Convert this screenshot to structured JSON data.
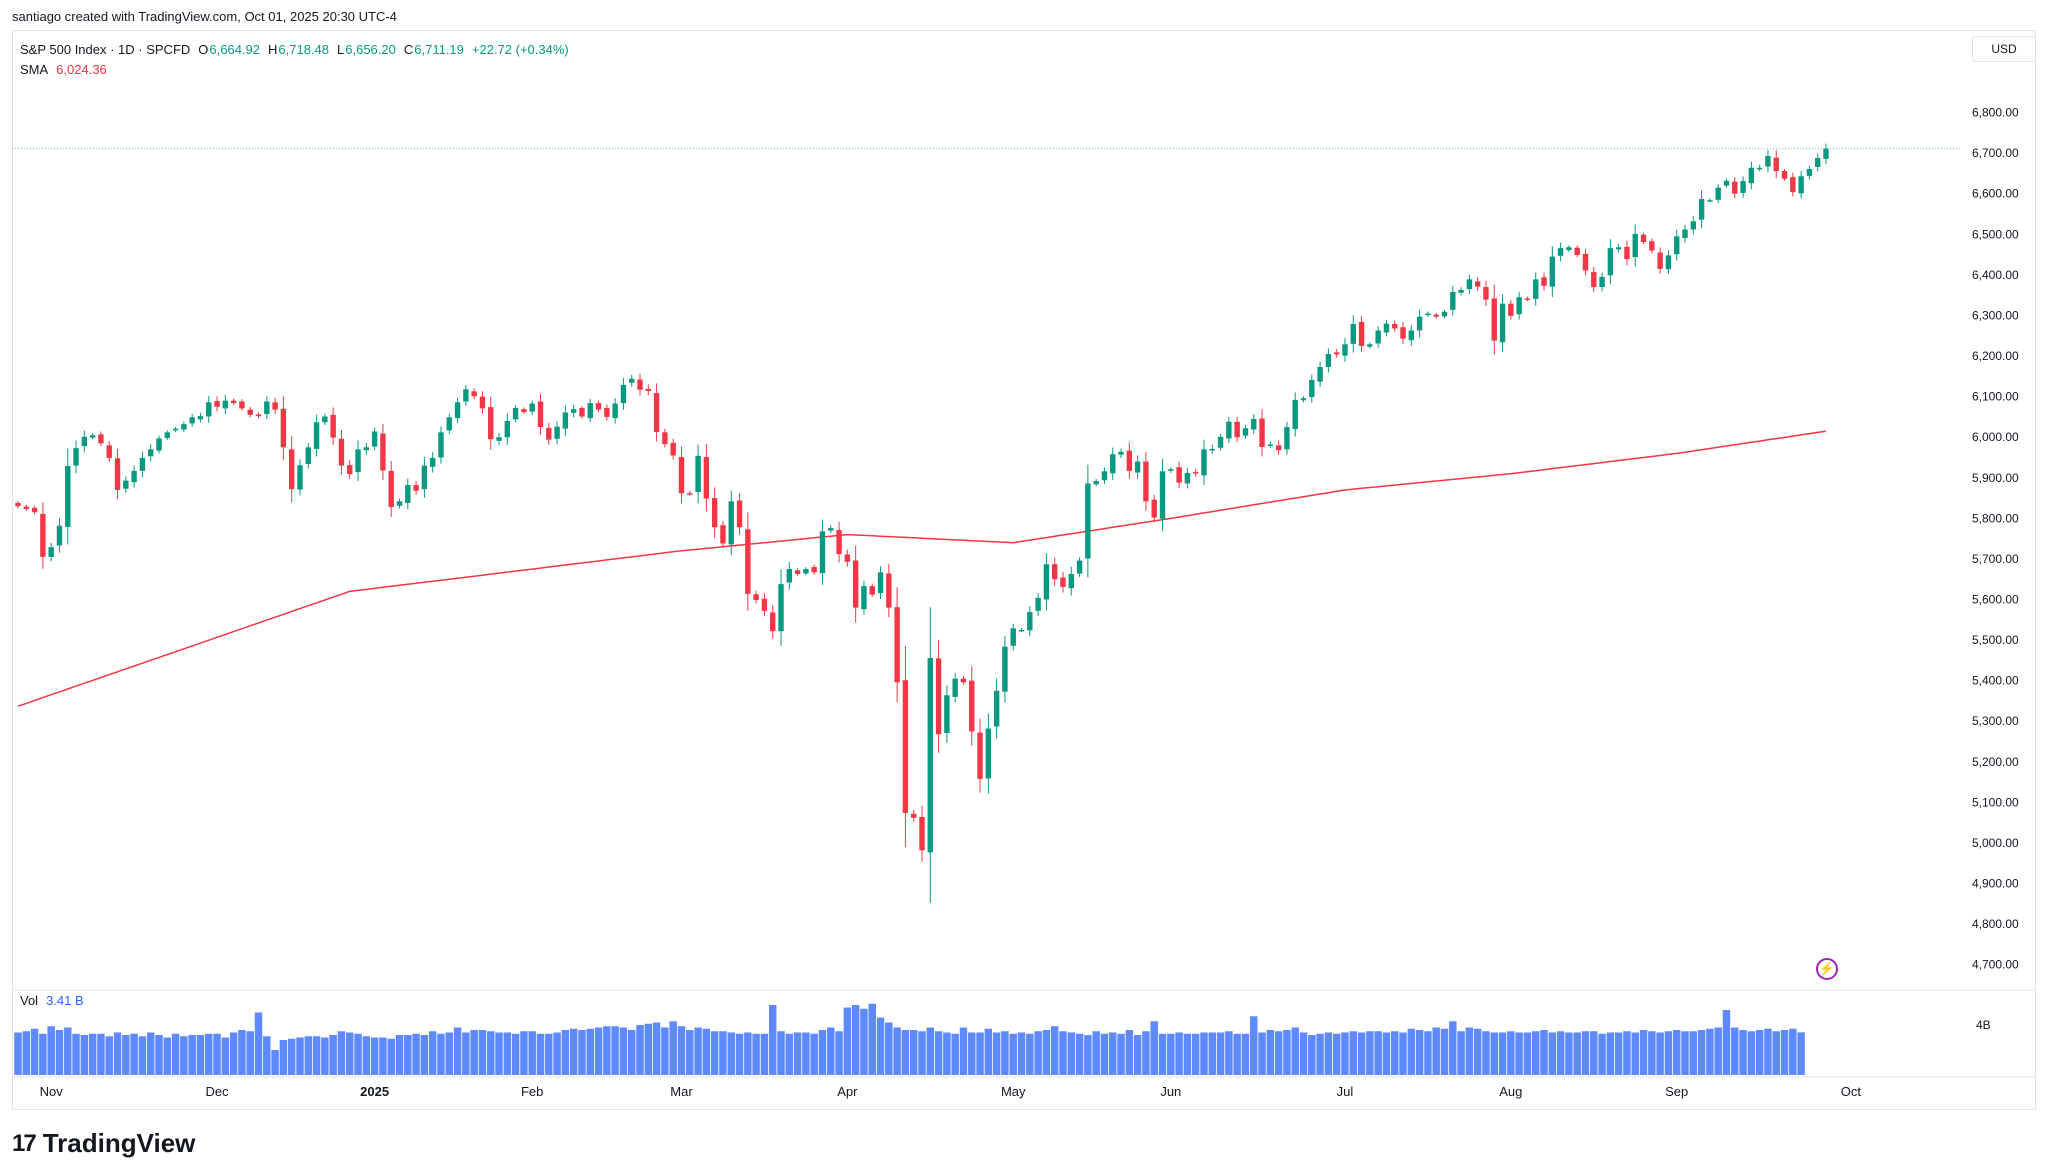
{
  "header": {
    "byline": "santiago created with TradingView.com, Oct 01, 2025 20:30 UTC-4"
  },
  "legend": {
    "symbol": "S&P 500 Index · 1D · SPCFD",
    "open_label": "O",
    "open": "6,664.92",
    "high_label": "H",
    "high": "6,718.48",
    "low_label": "L",
    "low": "6,656.20",
    "close_label": "C",
    "close": "6,711.19",
    "change": "+22.72 (+0.34%)",
    "sma_label": "SMA",
    "sma_value": "6,024.36",
    "vol_label": "Vol",
    "vol_value": "3.41 B"
  },
  "currency": "USD",
  "footer": {
    "logo_mark": "17",
    "logo_text": "TradingView"
  },
  "colors": {
    "up": "#089981",
    "down": "#f23645",
    "sma": "#f23645",
    "volume": "#2962ff",
    "last_price_line": "#089981"
  },
  "chart_data": {
    "type": "candlestick",
    "price_axis": {
      "ticks": [
        6800,
        6700,
        6600,
        6500,
        6400,
        6300,
        6200,
        6100,
        6000,
        5900,
        5800,
        5700,
        5600,
        5500,
        5400,
        5300,
        5200,
        5100,
        5000,
        4900,
        4800,
        4700
      ],
      "tick_labels": [
        "6,800.00",
        "6,700.00",
        "6,600.00",
        "6,500.00",
        "6,400.00",
        "6,300.00",
        "6,200.00",
        "6,100.00",
        "6,000.00",
        "5,900.00",
        "5,800.00",
        "5,700.00",
        "5,600.00",
        "5,500.00",
        "5,400.00",
        "5,300.00",
        "5,200.00",
        "5,100.00",
        "5,000.00",
        "4,900.00",
        "4,800.00",
        "4,700.00"
      ],
      "ylim": [
        4650,
        6900
      ]
    },
    "volume_axis": {
      "tick_label": "4B",
      "tick_value": 4.0,
      "ylim": [
        0,
        6
      ]
    },
    "time_axis": {
      "labels": [
        {
          "text": "Nov",
          "bold": false,
          "index": 4
        },
        {
          "text": "Dec",
          "bold": false,
          "index": 24
        },
        {
          "text": "2025",
          "bold": true,
          "index": 43
        },
        {
          "text": "Feb",
          "bold": false,
          "index": 62
        },
        {
          "text": "Mar",
          "bold": false,
          "index": 80
        },
        {
          "text": "Apr",
          "bold": false,
          "index": 100
        },
        {
          "text": "May",
          "bold": false,
          "index": 120
        },
        {
          "text": "Jun",
          "bold": false,
          "index": 139
        },
        {
          "text": "Jul",
          "bold": false,
          "index": 160
        },
        {
          "text": "Aug",
          "bold": false,
          "index": 180
        },
        {
          "text": "Sep",
          "bold": false,
          "index": 200
        },
        {
          "text": "Oct",
          "bold": false,
          "index": 221
        }
      ]
    },
    "closes": [
      5830,
      5823,
      5815,
      5705,
      5729,
      5782,
      5929,
      5973,
      6001,
      6005,
      5985,
      5949,
      5870,
      5893,
      5917,
      5949,
      5970,
      5997,
      6012,
      6021,
      6032,
      6049,
      6052,
      6086,
      6075,
      6090,
      6084,
      6071,
      6055,
      6052,
      6088,
      6068,
      5975,
      5872,
      5931,
      5975,
      6037,
      6051,
      5999,
      5930,
      5909,
      5970,
      5975,
      6014,
      5918,
      5828,
      5842,
      5882,
      5868,
      5930,
      5949,
      6012,
      6049,
      6086,
      6118,
      6101,
      6071,
      5995,
      6000,
      6040,
      6072,
      6062,
      6083,
      6025,
      5994,
      6026,
      6061,
      6069,
      6051,
      6084,
      6068,
      6050,
      6083,
      6129,
      6144,
      6117,
      6114,
      6013,
      5983,
      5955,
      5862,
      5861,
      5954,
      5849,
      5778,
      5738,
      5842,
      5778,
      5614,
      5599,
      5572,
      5522,
      5638,
      5675,
      5663,
      5675,
      5667,
      5768,
      5776,
      5712,
      5693,
      5580,
      5633,
      5612,
      5667,
      5580,
      5396,
      5074,
      5062,
      4982,
      5456,
      5268,
      5364,
      5405,
      5396,
      5275,
      5158,
      5282,
      5375,
      5484,
      5529,
      5525,
      5569,
      5604,
      5687,
      5650,
      5631,
      5663,
      5696,
      5886,
      5892,
      5916,
      5958,
      5964,
      5917,
      5940,
      5842,
      5802,
      5916,
      5921,
      5888,
      5912,
      5911,
      5970,
      5971,
      6001,
      6038,
      6000,
      6022,
      6045,
      5976,
      5982,
      5968,
      6025,
      6092,
      6096,
      6141,
      6173,
      6205,
      6204,
      6229,
      6279,
      6225,
      6229,
      6263,
      6280,
      6268,
      6243,
      6263,
      6297,
      6305,
      6297,
      6309,
      6358,
      6363,
      6389,
      6371,
      6339,
      6238,
      6329,
      6299,
      6345,
      6340,
      6389,
      6373,
      6445,
      6466,
      6468,
      6449,
      6411,
      6370,
      6395,
      6466,
      6468,
      6439,
      6501,
      6481,
      6460,
      6415,
      6448,
      6495,
      6512,
      6532,
      6587,
      6584,
      6615,
      6632,
      6600,
      6631,
      6664,
      6664,
      6693,
      6656,
      6637,
      6604,
      6643,
      6661,
      6688,
      6711
    ],
    "sma": {
      "name": "SMA",
      "start": 5337,
      "end": 6024.36,
      "description_points": [
        [
          0,
          5337
        ],
        [
          40,
          5620
        ],
        [
          80,
          5720
        ],
        [
          100,
          5760
        ],
        [
          120,
          5740
        ],
        [
          139,
          5800
        ],
        [
          160,
          5870
        ],
        [
          180,
          5910
        ],
        [
          200,
          5960
        ],
        [
          221,
          6024
        ]
      ]
    },
    "volumes": [
      3.4,
      3.5,
      3.7,
      3.3,
      3.9,
      3.6,
      3.8,
      3.3,
      3.2,
      3.3,
      3.3,
      3.1,
      3.4,
      3.2,
      3.3,
      3.1,
      3.4,
      3.2,
      3.0,
      3.3,
      3.1,
      3.2,
      3.2,
      3.3,
      3.3,
      3.0,
      3.4,
      3.6,
      3.5,
      5.0,
      3.1,
      2.0,
      2.8,
      2.9,
      3.0,
      3.1,
      3.1,
      3.0,
      3.2,
      3.5,
      3.4,
      3.3,
      3.1,
      3.0,
      3.0,
      2.9,
      3.2,
      3.2,
      3.3,
      3.2,
      3.5,
      3.3,
      3.4,
      3.8,
      3.4,
      3.6,
      3.6,
      3.5,
      3.4,
      3.4,
      3.3,
      3.5,
      3.5,
      3.3,
      3.3,
      3.4,
      3.6,
      3.7,
      3.6,
      3.7,
      3.8,
      3.9,
      3.9,
      3.8,
      3.6,
      4.0,
      4.1,
      4.2,
      3.8,
      4.3,
      3.9,
      3.6,
      3.8,
      3.7,
      3.5,
      3.5,
      3.4,
      3.3,
      3.4,
      3.3,
      3.3,
      5.6,
      3.5,
      3.3,
      3.4,
      3.4,
      3.3,
      3.6,
      3.8,
      3.5,
      5.4,
      5.6,
      5.3,
      5.7,
      4.6,
      4.2,
      3.8,
      3.6,
      3.6,
      3.5,
      3.8,
      3.5,
      3.4,
      3.3,
      3.8,
      3.4,
      3.4,
      3.7,
      3.4,
      3.5,
      3.3,
      3.4,
      3.3,
      3.5,
      3.6,
      3.9,
      3.5,
      3.4,
      3.3,
      3.2,
      3.5,
      3.3,
      3.4,
      3.3,
      3.6,
      3.2,
      3.5,
      4.3,
      3.3,
      3.3,
      3.4,
      3.3,
      3.3,
      3.4,
      3.4,
      3.4,
      3.5,
      3.3,
      3.3,
      4.7,
      3.4,
      3.6,
      3.5,
      3.6,
      3.8,
      3.4,
      3.2,
      3.3,
      3.4,
      3.3,
      3.4,
      3.5,
      3.4,
      3.5,
      3.5,
      3.4,
      3.5,
      3.4,
      3.7,
      3.6,
      3.5,
      3.8,
      3.7,
      4.3,
      3.5,
      3.8,
      3.7,
      3.5,
      3.4,
      3.4,
      3.5,
      3.4,
      3.4,
      3.5,
      3.6,
      3.4,
      3.5,
      3.4,
      3.4,
      3.5,
      3.5,
      3.3,
      3.4,
      3.4,
      3.5,
      3.4,
      3.6,
      3.5,
      3.4,
      3.5,
      3.6,
      3.5,
      3.5,
      3.6,
      3.7,
      3.8,
      5.2,
      3.8,
      3.6,
      3.5,
      3.6,
      3.7,
      3.5,
      3.6,
      3.7,
      3.41
    ],
    "last_price": 6711.19
  }
}
